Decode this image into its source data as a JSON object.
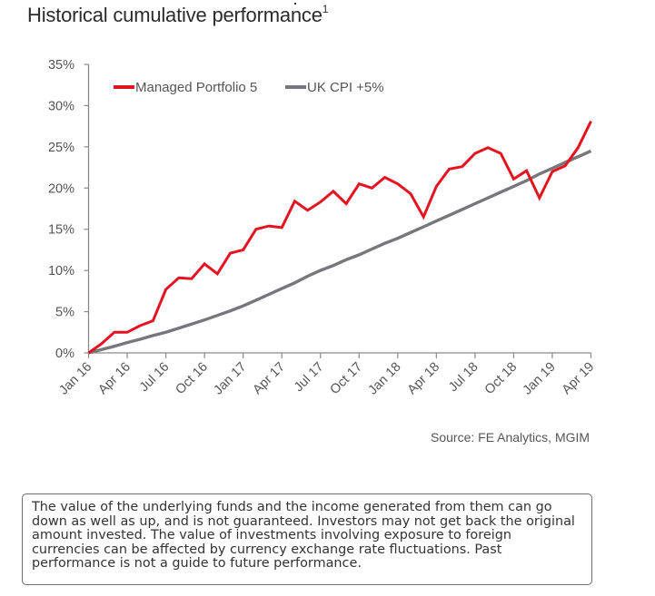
{
  "title": "Historical cumulative performance",
  "title_footnote": "1",
  "source": "Source: FE Analytics, MGIM",
  "disclaimer": "The value of the underlying funds and the income generated from them can go down as well as up, and is not guaranteed.  Investors may not get back the original amount invested.  The value of investments involving exposure to foreign currencies can be affected by currency exchange rate fluctuations. Past performance is not a guide to future performance.",
  "colors": {
    "portfolio": "#e3141f",
    "benchmark": "#77777b",
    "axis": "#8a8a8a",
    "text": "#555555"
  },
  "chart_data": {
    "type": "line",
    "title": "Historical cumulative performance",
    "xlabel": "",
    "ylabel": "",
    "ylim": [
      0,
      35
    ],
    "yticks": [
      0,
      5,
      10,
      15,
      20,
      25,
      30,
      35
    ],
    "ytick_labels": [
      "0%",
      "5%",
      "10%",
      "15%",
      "20%",
      "25%",
      "30%",
      "35%"
    ],
    "x_tick_labels": [
      "Jan 16",
      "Apr 16",
      "Jul 16",
      "Oct 16",
      "Jan 17",
      "Apr 17",
      "Jul 17",
      "Oct 17",
      "Jan 18",
      "Apr 18",
      "Jul 18",
      "Oct 18",
      "Jan 19",
      "Apr 19"
    ],
    "x_months": 39,
    "grid": false,
    "legend_position": "top-left",
    "series": [
      {
        "name": "Managed Portfolio 5",
        "color": "#e3141f",
        "values": [
          0.0,
          1.1,
          2.5,
          2.5,
          3.3,
          3.9,
          7.7,
          9.1,
          9.0,
          10.8,
          9.6,
          12.1,
          12.5,
          15.0,
          15.4,
          15.2,
          18.4,
          17.3,
          18.3,
          19.6,
          18.1,
          20.5,
          20.0,
          21.3,
          20.5,
          19.3,
          16.5,
          20.2,
          22.3,
          22.6,
          24.2,
          24.9,
          24.2,
          21.1,
          22.1,
          18.8,
          22.0,
          22.7,
          24.9,
          28.1
        ]
      },
      {
        "name": "UK CPI +5%",
        "color": "#77777b",
        "values": [
          0.0,
          0.4,
          0.8,
          1.25,
          1.65,
          2.1,
          2.5,
          3.0,
          3.5,
          4.0,
          4.55,
          5.1,
          5.7,
          6.4,
          7.1,
          7.8,
          8.5,
          9.3,
          10.0,
          10.6,
          11.3,
          11.9,
          12.6,
          13.3,
          13.9,
          14.6,
          15.3,
          16.0,
          16.7,
          17.4,
          18.1,
          18.8,
          19.5,
          20.2,
          20.9,
          21.7,
          22.4,
          23.1,
          23.8,
          24.5
        ]
      }
    ]
  }
}
